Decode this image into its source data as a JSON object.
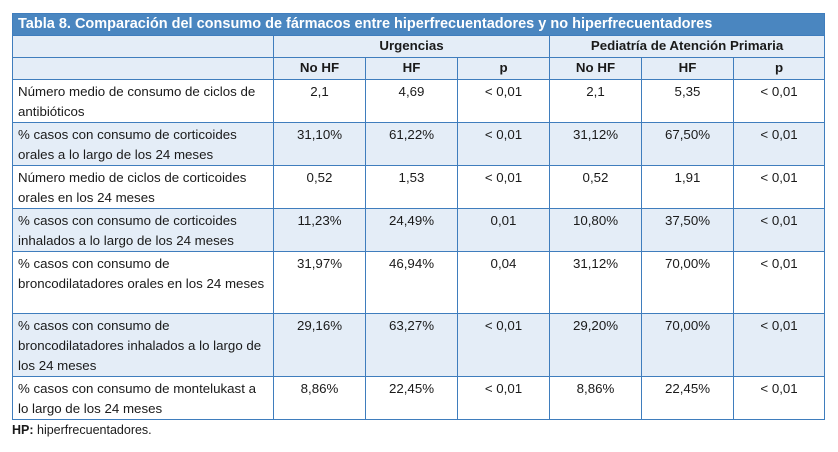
{
  "title_bold": "Tabla 8.",
  "title_rest": " Comparación del consumo de fármacos entre hiperfrecuentadores y no hiperfrecuentadores",
  "groups": [
    "Urgencias",
    "Pediatría de Atención Primaria"
  ],
  "subheaders": [
    "No HF",
    "HF",
    "p",
    "No HF",
    "HF",
    "p"
  ],
  "rows": [
    {
      "label": "Número medio de consumo de ciclos de antibióticos",
      "values": [
        "2,1",
        "4,69",
        "< 0,01",
        "2,1",
        "5,35",
        "< 0,01"
      ]
    },
    {
      "label": "% casos con consumo de corticoides orales a lo largo de los 24 meses",
      "values": [
        "31,10%",
        "61,22%",
        "< 0,01",
        "31,12%",
        "67,50%",
        "< 0,01"
      ]
    },
    {
      "label": "Número medio de ciclos de corticoides orales en los 24 meses",
      "values": [
        "0,52",
        "1,53",
        "< 0,01",
        "0,52",
        "1,91",
        "< 0,01"
      ]
    },
    {
      "label": "% casos con consumo de corticoides inhalados a lo largo de los 24 meses",
      "values": [
        "11,23%",
        "24,49%",
        "0,01",
        "10,80%",
        "37,50%",
        "< 0,01"
      ]
    },
    {
      "label": "% casos con consumo de broncodilatadores orales en los 24 meses",
      "values": [
        "31,97%",
        "46,94%",
        "0,04",
        "31,12%",
        "70,00%",
        "< 0,01"
      ]
    },
    {
      "label": "% casos con consumo de broncodilatadores inhalados a lo largo de los 24 meses",
      "values": [
        "29,16%",
        "63,27%",
        "< 0,01",
        "29,20%",
        "70,00%",
        "< 0,01"
      ]
    },
    {
      "label": "% casos con consumo de montelukast a lo largo de los 24 meses",
      "values": [
        "8,86%",
        "22,45%",
        "< 0,01",
        "8,86%",
        "22,45%",
        "< 0,01"
      ]
    }
  ],
  "footnote_bold": "HP:",
  "footnote_rest": " hiperfrecuentadores."
}
